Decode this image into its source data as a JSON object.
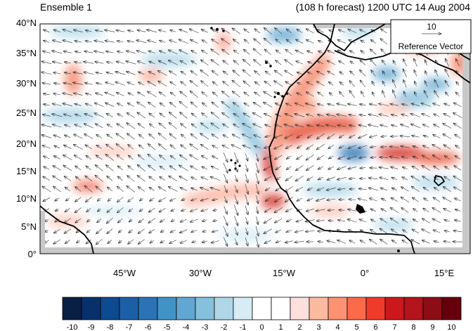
{
  "header": {
    "left_title": "Ensemble 1",
    "right_title": "(108 h forecast) 1200 UTC 14 Aug 2004"
  },
  "map": {
    "projection": "cylindrical equidistant",
    "lon_range": [
      -59,
      20
    ],
    "lat_range": [
      0,
      40
    ],
    "lat_ticks": [
      "0°",
      "5°N",
      "10°N",
      "15°N",
      "20°N",
      "25°N",
      "30°N",
      "35°N",
      "40°N"
    ],
    "lon_ticks": [
      "45°W",
      "30°W",
      "15°W",
      "0°",
      "15°E"
    ]
  },
  "reference_vector": {
    "magnitude": "10",
    "label": "Reference Vector"
  },
  "colorbar": {
    "labels": [
      "-10",
      "-9",
      "-8",
      "-7",
      "-6",
      "-5",
      "-4",
      "-3",
      "-2",
      "-1",
      "0",
      "1",
      "2",
      "3",
      "4",
      "5",
      "6",
      "7",
      "8",
      "9",
      "10"
    ],
    "colors": [
      "#0a1f44",
      "#08306b",
      "#0d4a8f",
      "#1d5fa6",
      "#2b73b5",
      "#4292c6",
      "#62a7d2",
      "#86c0dd",
      "#b0d7e8",
      "#d8ecf5",
      "#ffffff",
      "#ffffff",
      "#fde0dd",
      "#fcbba1",
      "#fc9272",
      "#fb6a4a",
      "#ef3b2c",
      "#cb181d",
      "#b3141d",
      "#8c0d14",
      "#67000d"
    ]
  },
  "colors": {
    "land_mask": "#c8c8c8",
    "coastline": "#000000",
    "vector": "#222222"
  }
}
